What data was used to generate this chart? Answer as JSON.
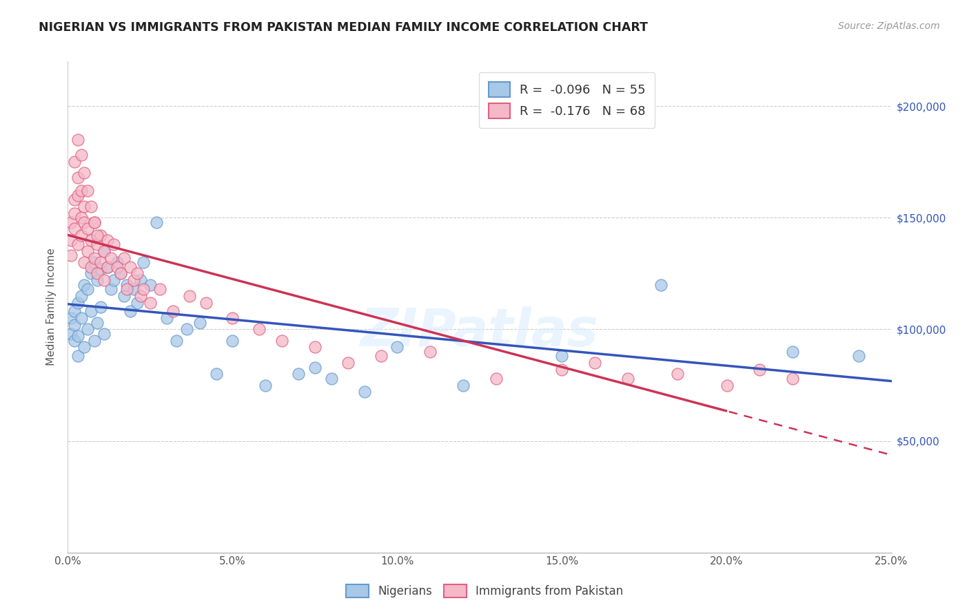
{
  "title": "NIGERIAN VS IMMIGRANTS FROM PAKISTAN MEDIAN FAMILY INCOME CORRELATION CHART",
  "source": "Source: ZipAtlas.com",
  "ylabel": "Median Family Income",
  "xlim": [
    0.0,
    0.25
  ],
  "ylim": [
    0,
    220000
  ],
  "legend_r_blue": "-0.096",
  "legend_n_blue": "55",
  "legend_r_pink": "-0.176",
  "legend_n_pink": "68",
  "label_blue": "Nigerians",
  "label_pink": "Immigrants from Pakistan",
  "blue_color": "#a8c8e8",
  "pink_color": "#f4b8c8",
  "blue_edge_color": "#6699cc",
  "pink_edge_color": "#e06080",
  "blue_line_color": "#3355bb",
  "pink_line_color": "#cc3355",
  "watermark": "ZIPatlas",
  "nigerians_x": [
    0.001,
    0.001,
    0.002,
    0.002,
    0.002,
    0.003,
    0.003,
    0.003,
    0.004,
    0.004,
    0.005,
    0.005,
    0.006,
    0.006,
    0.007,
    0.007,
    0.008,
    0.008,
    0.009,
    0.009,
    0.01,
    0.01,
    0.011,
    0.011,
    0.012,
    0.013,
    0.014,
    0.015,
    0.016,
    0.017,
    0.018,
    0.019,
    0.02,
    0.021,
    0.022,
    0.023,
    0.025,
    0.027,
    0.03,
    0.033,
    0.036,
    0.04,
    0.045,
    0.05,
    0.06,
    0.07,
    0.075,
    0.08,
    0.09,
    0.1,
    0.12,
    0.15,
    0.18,
    0.22,
    0.24
  ],
  "nigerians_y": [
    105000,
    98000,
    108000,
    102000,
    95000,
    112000,
    97000,
    88000,
    115000,
    105000,
    120000,
    92000,
    118000,
    100000,
    125000,
    108000,
    130000,
    95000,
    122000,
    103000,
    127000,
    110000,
    135000,
    98000,
    128000,
    118000,
    122000,
    130000,
    125000,
    115000,
    120000,
    108000,
    118000,
    112000,
    122000,
    130000,
    120000,
    148000,
    105000,
    95000,
    100000,
    103000,
    80000,
    95000,
    75000,
    80000,
    83000,
    78000,
    72000,
    92000,
    75000,
    88000,
    120000,
    90000,
    88000
  ],
  "pakistan_x": [
    0.001,
    0.001,
    0.001,
    0.002,
    0.002,
    0.002,
    0.003,
    0.003,
    0.003,
    0.004,
    0.004,
    0.004,
    0.005,
    0.005,
    0.005,
    0.006,
    0.006,
    0.007,
    0.007,
    0.008,
    0.008,
    0.009,
    0.009,
    0.01,
    0.01,
    0.011,
    0.011,
    0.012,
    0.012,
    0.013,
    0.014,
    0.015,
    0.016,
    0.017,
    0.018,
    0.019,
    0.02,
    0.021,
    0.022,
    0.023,
    0.025,
    0.028,
    0.032,
    0.037,
    0.042,
    0.05,
    0.058,
    0.065,
    0.075,
    0.085,
    0.095,
    0.11,
    0.13,
    0.15,
    0.16,
    0.17,
    0.185,
    0.2,
    0.21,
    0.22,
    0.002,
    0.003,
    0.004,
    0.005,
    0.006,
    0.007,
    0.008,
    0.009
  ],
  "pakistan_y": [
    148000,
    140000,
    133000,
    158000,
    152000,
    145000,
    168000,
    160000,
    138000,
    162000,
    150000,
    142000,
    155000,
    148000,
    130000,
    145000,
    135000,
    140000,
    128000,
    148000,
    132000,
    138000,
    125000,
    142000,
    130000,
    135000,
    122000,
    140000,
    128000,
    132000,
    138000,
    128000,
    125000,
    132000,
    118000,
    128000,
    122000,
    125000,
    115000,
    118000,
    112000,
    118000,
    108000,
    115000,
    112000,
    105000,
    100000,
    95000,
    92000,
    85000,
    88000,
    90000,
    78000,
    82000,
    85000,
    78000,
    80000,
    75000,
    82000,
    78000,
    175000,
    185000,
    178000,
    170000,
    162000,
    155000,
    148000,
    142000
  ]
}
